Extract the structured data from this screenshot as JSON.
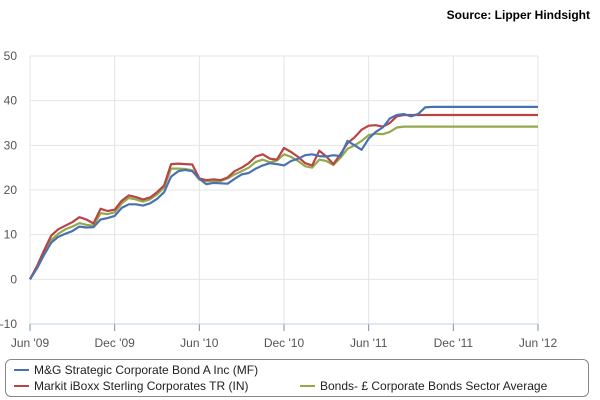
{
  "source": "Source: Lipper Hindsight",
  "colors": {
    "mg": "#4a72b0",
    "markit": "#b84444",
    "sector": "#93a94b",
    "grid": "#e4e4e4",
    "axis": "#c0d0e0"
  },
  "chart_data": {
    "type": "line",
    "x_ticks": [
      "Jun '09",
      "Dec '09",
      "Jun '10",
      "Dec '10",
      "Jun '11",
      "Dec '11",
      "Jun '12"
    ],
    "y_ticks": [
      "50",
      "40",
      "30",
      "20",
      "10",
      "0",
      "-10"
    ],
    "ylim": [
      -10,
      50
    ],
    "grid": true,
    "legend_position": "bottom",
    "series": [
      {
        "name": "M&G Strategic Corporate Bond A Inc (MF)",
        "color_key": "mg",
        "x": [
          0,
          0.5,
          1,
          1.5,
          2,
          2.5,
          3,
          3.5,
          4,
          4.5,
          5,
          5.5,
          6,
          6.5,
          7,
          7.5,
          8,
          8.5,
          9,
          9.5,
          10,
          10.5,
          11,
          11.5,
          12,
          12.5,
          13,
          13.5,
          14,
          14.5,
          15,
          15.5,
          16,
          16.5,
          17,
          17.5,
          18,
          18.5,
          19,
          19.5,
          20,
          20.5,
          21,
          21.5,
          22,
          22.5,
          23,
          23.5,
          24,
          24.5,
          25,
          25.5,
          26,
          26.5,
          27,
          27.5,
          28,
          28.5,
          29,
          29.5,
          30,
          30.5,
          31,
          31.5,
          32,
          32.5,
          33,
          33.5,
          34,
          34.5,
          35,
          35.5,
          36
        ],
        "values": [
          0,
          2.5,
          5.5,
          8.2,
          9.5,
          10.2,
          10.8,
          11.8,
          11.6,
          11.7,
          13.4,
          13.7,
          14.2,
          16.0,
          16.8,
          16.8,
          16.5,
          17.0,
          18.0,
          19.5,
          23.0,
          24.2,
          24.5,
          24.2,
          22.5,
          21.3,
          21.6,
          21.5,
          21.4,
          22.5,
          23.5,
          23.8,
          24.8,
          25.5,
          26.0,
          25.8,
          25.5,
          26.5,
          27.0,
          27.8,
          28.0,
          27.6,
          27.5,
          27.8,
          27.6,
          31.0,
          30.0,
          29.0,
          31.5,
          33.0,
          34.0,
          36.0,
          36.8,
          37.0,
          36.5,
          37.0,
          38.5,
          38.6,
          38.6,
          38.6,
          38.6,
          38.6,
          38.6,
          38.6,
          38.6,
          38.6,
          38.6,
          38.6,
          38.6,
          38.6,
          38.6,
          38.6,
          38.6
        ]
      },
      {
        "name": "Markit iBoxx Sterling Corporates TR (IN)",
        "color_key": "markit",
        "x": [
          0,
          0.5,
          1,
          1.5,
          2,
          2.5,
          3,
          3.5,
          4,
          4.5,
          5,
          5.5,
          6,
          6.5,
          7,
          7.5,
          8,
          8.5,
          9,
          9.5,
          10,
          10.5,
          11,
          11.5,
          12,
          12.5,
          13,
          13.5,
          14,
          14.5,
          15,
          15.5,
          16,
          16.5,
          17,
          17.5,
          18,
          18.5,
          19,
          19.5,
          20,
          20.5,
          21,
          21.5,
          22,
          22.5,
          23,
          23.5,
          24,
          24.5,
          25,
          25.5,
          26,
          26.5,
          27,
          27.5,
          28,
          28.5,
          29,
          29.5,
          30,
          30.5,
          31,
          31.5,
          32,
          32.5,
          33,
          33.5,
          34,
          34.5,
          35,
          35.5,
          36
        ],
        "values": [
          0,
          3.0,
          6.5,
          9.8,
          11.2,
          12.0,
          12.8,
          13.9,
          13.4,
          12.5,
          15.8,
          15.3,
          15.6,
          17.6,
          18.8,
          18.4,
          17.9,
          18.3,
          19.5,
          21.0,
          25.8,
          25.9,
          25.8,
          25.7,
          22.6,
          22.2,
          22.4,
          22.2,
          22.8,
          24.2,
          25.0,
          26.0,
          27.5,
          28.0,
          27.0,
          26.8,
          29.4,
          28.5,
          27.4,
          26.0,
          25.5,
          28.8,
          27.5,
          25.8,
          28.0,
          30.5,
          31.8,
          33.5,
          34.4,
          34.5,
          34.2,
          35.0,
          36.5,
          36.8,
          36.8,
          36.8,
          36.8,
          36.8,
          36.8,
          36.8,
          36.8,
          36.8,
          36.8,
          36.8,
          36.8,
          36.8,
          36.8,
          36.8,
          36.8,
          36.8,
          36.8,
          36.8,
          36.8
        ]
      },
      {
        "name": "Bonds- £ Corporate Bonds Sector Average",
        "color_key": "sector",
        "x": [
          0,
          0.5,
          1,
          1.5,
          2,
          2.5,
          3,
          3.5,
          4,
          4.5,
          5,
          5.5,
          6,
          6.5,
          7,
          7.5,
          8,
          8.5,
          9,
          9.5,
          10,
          10.5,
          11,
          11.5,
          12,
          12.5,
          13,
          13.5,
          14,
          14.5,
          15,
          15.5,
          16,
          16.5,
          17,
          17.5,
          18,
          18.5,
          19,
          19.5,
          20,
          20.5,
          21,
          21.5,
          22,
          22.5,
          23,
          23.5,
          24,
          24.5,
          25,
          25.5,
          26,
          26.5,
          27,
          27.5,
          28,
          28.5,
          29,
          29.5,
          30,
          30.5,
          31,
          31.5,
          32,
          32.5,
          33,
          33.5,
          34,
          34.5,
          35,
          35.5,
          36
        ],
        "values": [
          0,
          2.7,
          5.8,
          8.8,
          10.2,
          11.2,
          11.8,
          12.6,
          12.2,
          12.0,
          14.8,
          14.6,
          15.0,
          17.0,
          18.2,
          17.9,
          17.4,
          17.9,
          19.0,
          20.6,
          24.8,
          24.8,
          24.7,
          24.4,
          22.3,
          22.0,
          22.0,
          22.0,
          22.6,
          23.5,
          24.2,
          25.0,
          26.3,
          26.8,
          26.2,
          26.6,
          28.0,
          27.4,
          26.5,
          25.3,
          25.0,
          26.8,
          26.5,
          25.6,
          27.2,
          29.2,
          30.0,
          31.0,
          32.3,
          32.6,
          32.5,
          33.0,
          34.0,
          34.2,
          34.2,
          34.2,
          34.2,
          34.2,
          34.2,
          34.2,
          34.2,
          34.2,
          34.2,
          34.2,
          34.2,
          34.2,
          34.2,
          34.2,
          34.2,
          34.2,
          34.2,
          34.2,
          34.2
        ]
      }
    ]
  }
}
